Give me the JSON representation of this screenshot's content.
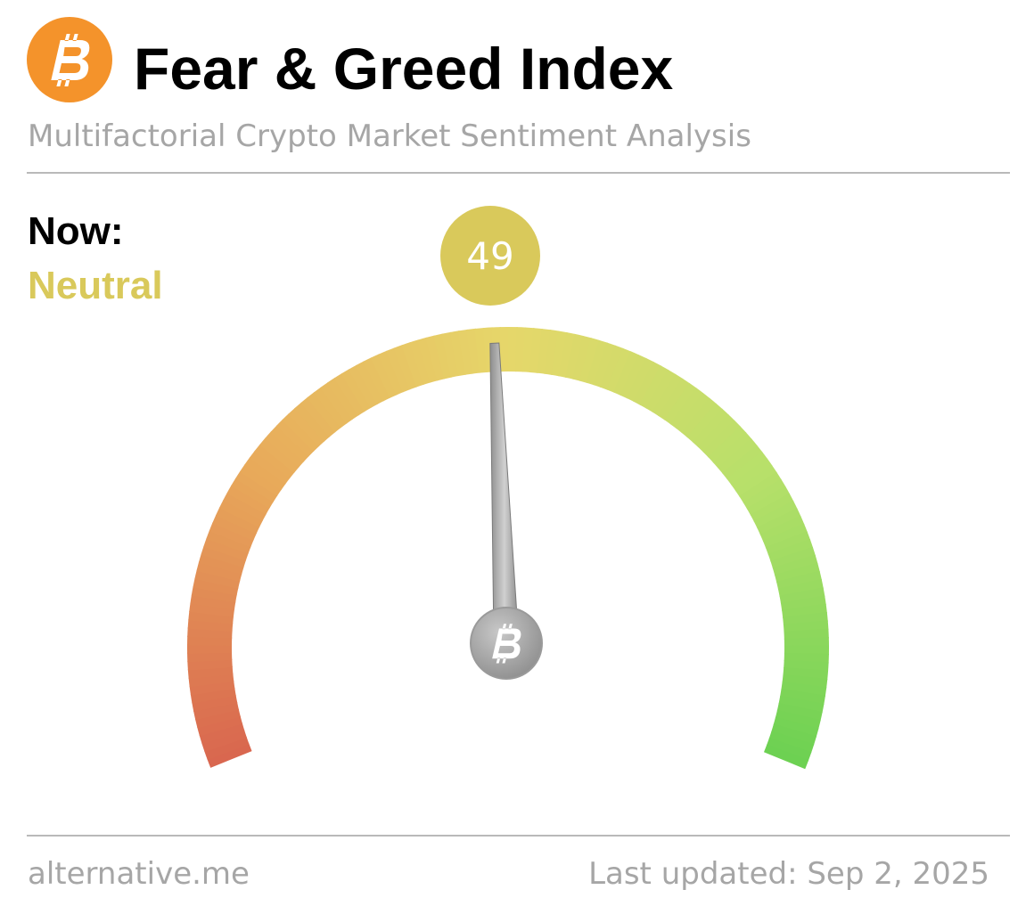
{
  "chart_data": {
    "type": "gauge",
    "title": "Fear & Greed Index",
    "subtitle": "Multifactorial Crypto Market Sentiment Analysis",
    "now_label": "Now:",
    "classification": "Neutral",
    "value": 49,
    "color": "#d9c95b",
    "ylim": [
      0,
      100
    ],
    "source": "alternative.me",
    "last_updated": "Last updated: Sep 2, 2025"
  }
}
